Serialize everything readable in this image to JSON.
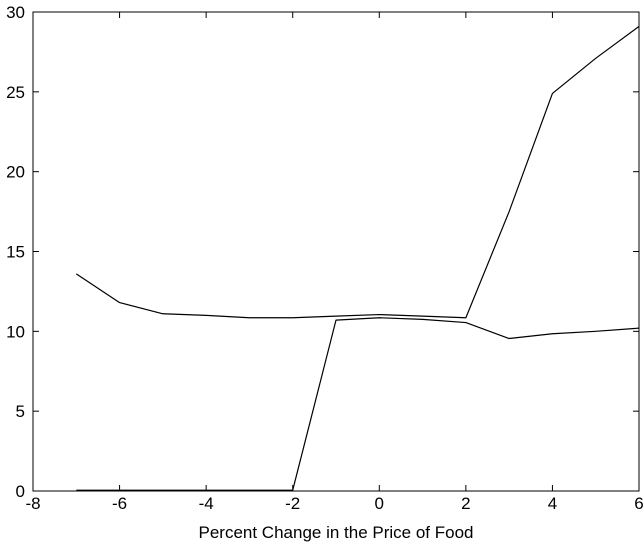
{
  "chart_data": {
    "type": "line",
    "title": "",
    "xlabel": "Percent Change in the Price of Food",
    "ylabel": "",
    "xlim": [
      -8,
      6
    ],
    "ylim": [
      0,
      30
    ],
    "xticks": [
      -8,
      -6,
      -4,
      -2,
      0,
      2,
      4,
      6
    ],
    "yticks": [
      0,
      5,
      10,
      15,
      20,
      25,
      30
    ],
    "xtick_labels": [
      "-8",
      "-6",
      "-4",
      "-2",
      "0",
      "2",
      "4",
      "6"
    ],
    "ytick_labels": [
      "0",
      "5",
      "10",
      "15",
      "20",
      "25",
      "30"
    ],
    "grid": false,
    "series": [
      {
        "x": [
          -7,
          -6,
          -5,
          -4,
          -3,
          -2,
          -1,
          0,
          1,
          2,
          3,
          4,
          5,
          6
        ],
        "y": [
          13.6,
          11.8,
          11.1,
          11.0,
          10.85,
          10.85,
          10.95,
          11.05,
          10.95,
          10.85,
          17.5,
          24.9,
          27.1,
          29.1
        ]
      },
      {
        "x": [
          -7,
          -6,
          -5,
          -4,
          -3,
          -2,
          -1,
          0,
          1,
          2,
          3,
          4,
          5,
          6
        ],
        "y": [
          0.05,
          0.05,
          0.05,
          0.05,
          0.05,
          0.05,
          10.7,
          10.85,
          10.75,
          10.55,
          9.55,
          9.85,
          10.0,
          10.2
        ]
      }
    ],
    "colors": {
      "line": "#000000",
      "axes": "#000000",
      "background": "#ffffff"
    }
  }
}
